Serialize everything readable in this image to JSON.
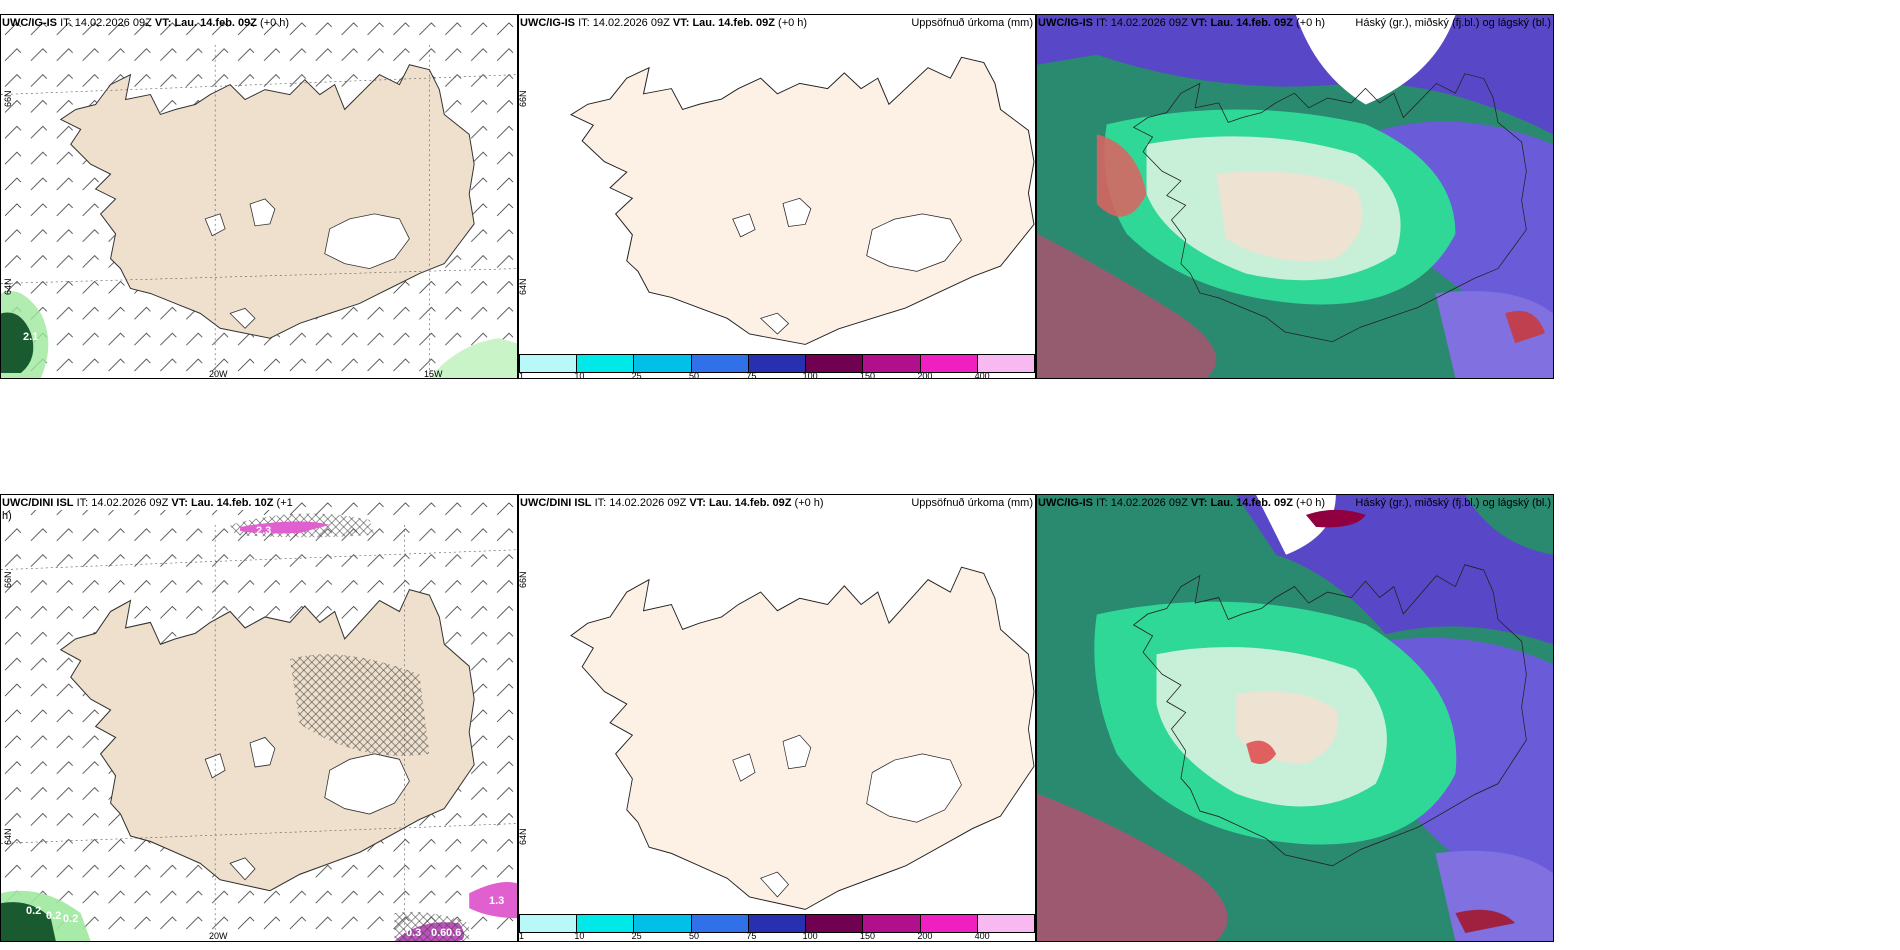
{
  "panels": {
    "p1": {
      "model": "UWC/IG-IS",
      "it_label": "IT:",
      "it": "14.02.2026 09Z",
      "vt_label": "VT:",
      "vt": "Lau. 14.feb. 09Z",
      "lead": "(+0 h)",
      "title_right": ""
    },
    "p2": {
      "model": "UWC/IG-IS",
      "it_label": "IT:",
      "it": "14.02.2026 09Z",
      "vt_label": "VT:",
      "vt": "Lau. 14.feb. 09Z",
      "lead": "(+0 h)",
      "title_right": "Uppsöfnuð úrkoma (mm)"
    },
    "p3": {
      "model": "UWC/IG-IS",
      "it_label": "IT:",
      "it": "14.02.2026 09Z",
      "vt_label": "VT:",
      "vt": "Lau. 14.feb. 09Z",
      "lead": "(+0 h)",
      "title_right": "Háský (gr.), miðský (fj.bl.) og lágský (bl.)"
    },
    "p4": {
      "model": "UWC/DINI ISL",
      "it_label": "IT:",
      "it": "14.02.2026 09Z",
      "vt_label": "VT:",
      "vt": "Lau. 14.feb. 10Z",
      "lead": "(+1",
      "lead2": "h)",
      "title_right": ""
    },
    "p5": {
      "model": "UWC/DINI ISL",
      "it_label": "IT:",
      "it": "14.02.2026 09Z",
      "vt_label": "VT:",
      "vt": "Lau. 14.feb. 09Z",
      "lead": "(+0 h)",
      "title_right": "Uppsöfnuð úrkoma (mm)"
    },
    "p6": {
      "model": "UWC/IG-IS",
      "it_label": "IT:",
      "it": "14.02.2026 09Z",
      "vt_label": "VT:",
      "vt": "Lau. 14.feb. 09Z",
      "lead": "(+0 h)",
      "title_right": "Háský (gr.), miðský (fj.bl.) og lágský (bl.)"
    }
  },
  "axes": {
    "lon_a": "20W",
    "lon_b": "15W",
    "lat_a": "66N",
    "lat_b": "64N"
  },
  "colorbar": {
    "labels": [
      "1",
      "10",
      "25",
      "50",
      "75",
      "100",
      "150",
      "200",
      "400"
    ],
    "colors": [
      "#b8f8f8",
      "#00e8e8",
      "#00c0e8",
      "#3070e8",
      "#2830b0",
      "#700050",
      "#b0108c",
      "#f020c0",
      "#f8b8f0"
    ]
  },
  "values": {
    "p1_a": "2.1",
    "p4_a": "2.3",
    "p4_b": "0.2",
    "p4_c": "0.2",
    "p4_d": "0.2",
    "p4_e": "1.3",
    "p4_f": "0.3",
    "p4_g": "0.6",
    "p4_h": "0.6"
  },
  "colors": {
    "land": "#eee0cc",
    "land_plain": "#fdf0e4",
    "glacier": "#ffffff",
    "cloud_low": "#2a8a70",
    "cloud_mid": "#5848c8",
    "cloud_high": "#30d898"
  }
}
